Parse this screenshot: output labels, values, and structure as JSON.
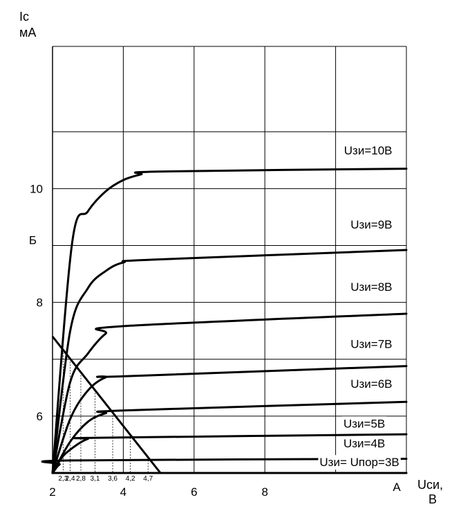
{
  "chart_data": {
    "type": "line",
    "ylabel_lines": [
      "Ic",
      "мА"
    ],
    "xlabel_lines": [
      "Uси,",
      "В"
    ],
    "x_ticks": [
      {
        "value": 2,
        "label": "2"
      },
      {
        "value": 4,
        "label": "4"
      },
      {
        "value": 6,
        "label": "6"
      },
      {
        "value": 8,
        "label": "8"
      }
    ],
    "y_ticks": [
      {
        "value": 6,
        "label": "6"
      },
      {
        "value": 8,
        "label": "8"
      },
      {
        "value": 10,
        "label": "10"
      }
    ],
    "xlim": [
      2,
      12
    ],
    "ylim": [
      5,
      12.5
    ],
    "grid": true,
    "vertical_grid_x": [
      2,
      4,
      6,
      8,
      10,
      12
    ],
    "horizontal_grid_y": [
      6,
      7,
      8,
      9,
      10,
      11,
      12.5
    ],
    "point_labels": [
      {
        "label": "А",
        "x": 12,
        "y": 5
      },
      {
        "label": "Б",
        "x": 2,
        "y": 9.1
      }
    ],
    "marker_ticks": [
      {
        "label": "2,3",
        "x": 2.3
      },
      {
        "label": "2,4",
        "x": 2.5
      },
      {
        "label": "2,8",
        "x": 2.8
      },
      {
        "label": "3,1",
        "x": 3.2
      },
      {
        "label": "3,6",
        "x": 3.7
      },
      {
        "label": "4,2",
        "x": 4.2
      },
      {
        "label": "4,7",
        "x": 4.7
      }
    ],
    "load_line": {
      "x": [
        2.0,
        5.05
      ],
      "y": [
        7.4,
        5.0
      ]
    },
    "series": [
      {
        "label": "Uзи=10В",
        "label_x": 11.6,
        "label_y": 10.6,
        "points": [
          [
            2.0,
            5.0
          ],
          [
            2.55,
            9.03
          ],
          [
            3.0,
            9.6
          ],
          [
            3.5,
            9.95
          ],
          [
            4.0,
            10.15
          ],
          [
            4.5,
            10.25
          ],
          [
            5.0,
            10.3
          ],
          [
            12.0,
            10.35
          ]
        ]
      },
      {
        "label": "Uзи=9В",
        "label_x": 11.6,
        "label_y": 9.3,
        "points": [
          [
            2.0,
            5.0
          ],
          [
            2.5,
            7.5
          ],
          [
            3.0,
            8.25
          ],
          [
            3.5,
            8.55
          ],
          [
            4.0,
            8.7
          ],
          [
            4.8,
            8.75
          ],
          [
            12.0,
            8.92
          ]
        ]
      },
      {
        "label": "Uзи=8В",
        "label_x": 11.6,
        "label_y": 8.2,
        "points": [
          [
            2.0,
            5.0
          ],
          [
            2.5,
            6.6
          ],
          [
            3.0,
            7.1
          ],
          [
            3.5,
            7.45
          ],
          [
            3.95,
            7.58
          ],
          [
            12.0,
            7.8
          ]
        ]
      },
      {
        "label": "Uзи=7В",
        "label_x": 11.6,
        "label_y": 7.2,
        "points": [
          [
            2.0,
            5.0
          ],
          [
            2.5,
            5.95
          ],
          [
            3.0,
            6.45
          ],
          [
            3.5,
            6.68
          ],
          [
            4.0,
            6.7
          ],
          [
            12.0,
            6.88
          ]
        ]
      },
      {
        "label": "Uзи=6В",
        "label_x": 11.6,
        "label_y": 6.5,
        "points": [
          [
            2.0,
            5.0
          ],
          [
            2.5,
            5.55
          ],
          [
            3.0,
            5.9
          ],
          [
            3.5,
            6.05
          ],
          [
            4.0,
            6.1
          ],
          [
            12.0,
            6.25
          ]
        ]
      },
      {
        "label": "Uзи=5В",
        "label_x": 11.4,
        "label_y": 5.8,
        "points": [
          [
            2.0,
            5.0
          ],
          [
            2.3,
            5.3
          ],
          [
            2.7,
            5.5
          ],
          [
            3.0,
            5.6
          ],
          [
            3.3,
            5.62
          ],
          [
            12.0,
            5.68
          ]
        ]
      },
      {
        "label": "Uзи=4В",
        "label_x": 11.4,
        "label_y": 5.45,
        "points": [
          [
            2.0,
            5.0
          ],
          [
            2.2,
            5.15
          ],
          [
            2.5,
            5.22
          ],
          [
            12.0,
            5.25
          ]
        ]
      },
      {
        "label": "Uзи= Uпор=3В",
        "label_x": 11.8,
        "label_y": 5.12,
        "points": [
          [
            2.0,
            5.0
          ],
          [
            12.0,
            5.0
          ]
        ]
      }
    ]
  }
}
